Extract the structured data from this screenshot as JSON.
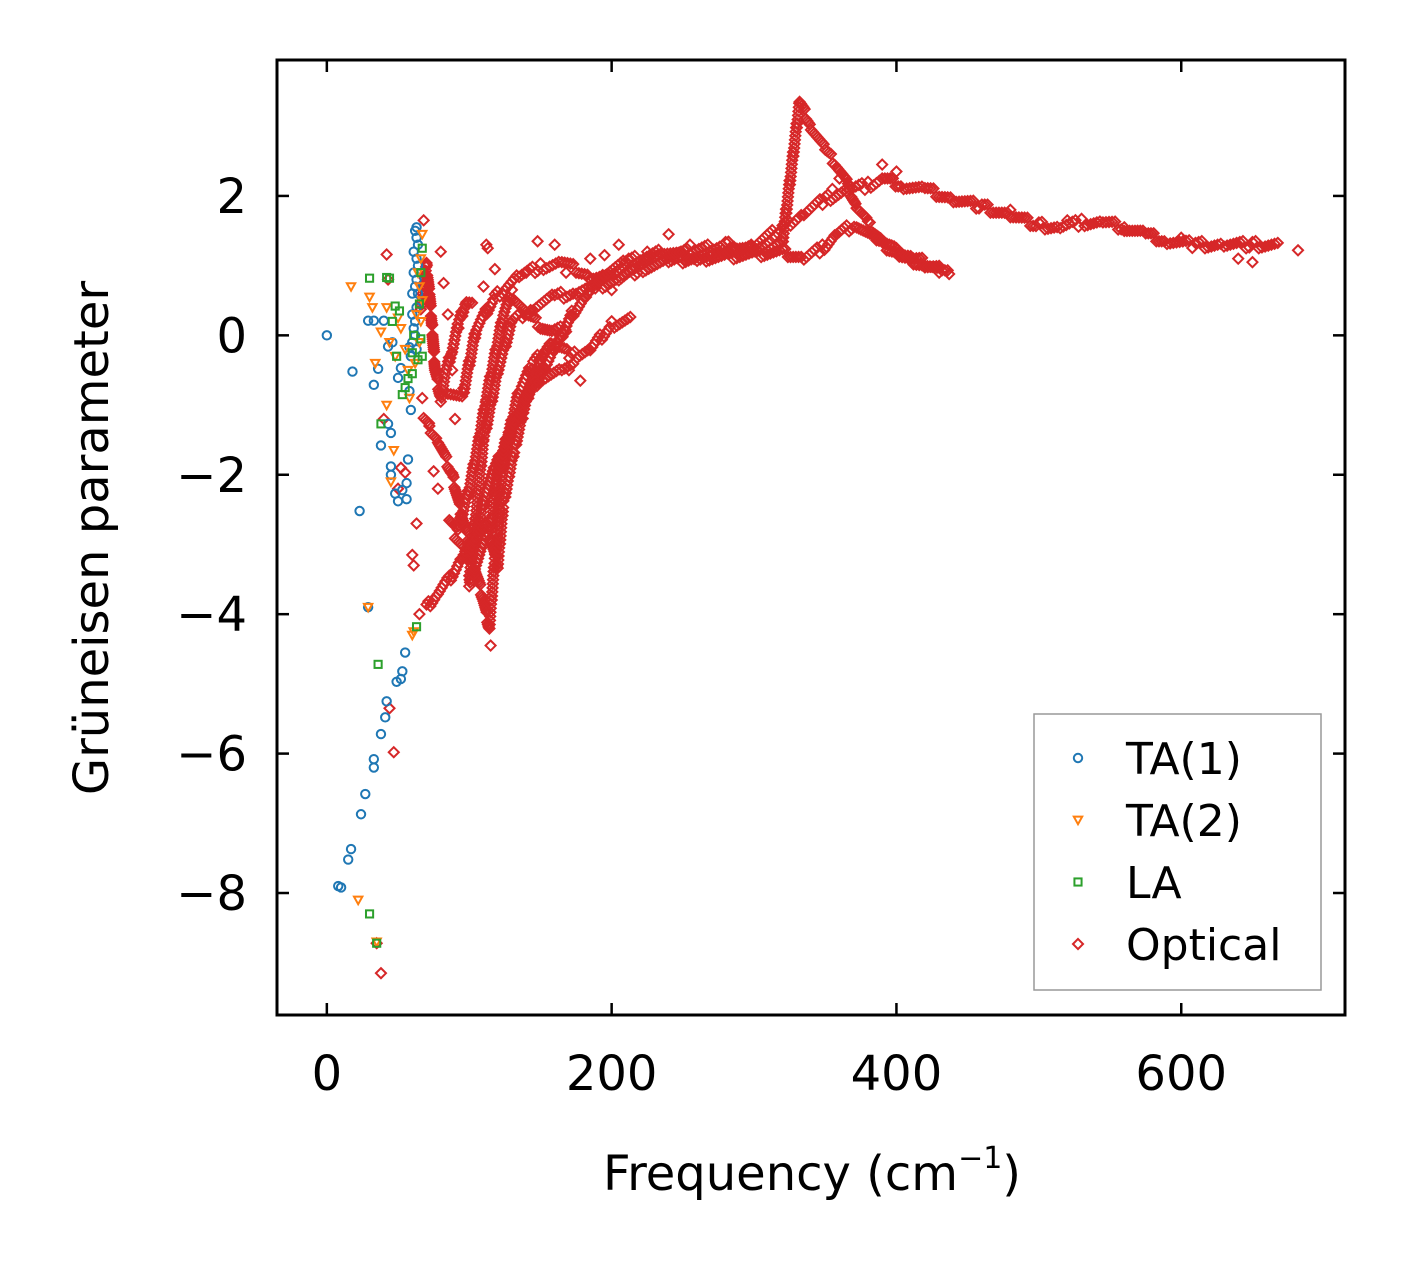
{
  "chart_data": {
    "type": "scatter",
    "title": "",
    "xlabel": "Frequency (cm",
    "xlabel_sup": "−1",
    "xlabel_close": ")",
    "ylabel": "Grüneisen parameter",
    "xlim": [
      -35,
      715
    ],
    "ylim": [
      -9.75,
      3.95
    ],
    "xticks": [
      0,
      200,
      400,
      600
    ],
    "xtick_labels": [
      "0",
      "200",
      "400",
      "600"
    ],
    "yticks": [
      2,
      0,
      -2,
      -4,
      -6,
      -8
    ],
    "ytick_labels": [
      "2",
      "0",
      "−2",
      "−4",
      "−6",
      "−8"
    ],
    "legend_position": "lower-right",
    "series": [
      {
        "name": "TA(1)",
        "marker": "circle",
        "color": "#1f77b4",
        "points": [
          [
            0,
            0
          ],
          [
            8,
            -7.9
          ],
          [
            10,
            -7.92
          ],
          [
            15,
            -7.52
          ],
          [
            17,
            -7.37
          ],
          [
            18,
            -0.52
          ],
          [
            23,
            -2.52
          ],
          [
            24,
            -6.87
          ],
          [
            27,
            -6.58
          ],
          [
            29,
            -3.9
          ],
          [
            29,
            0.21
          ],
          [
            33,
            -6.2
          ],
          [
            33,
            -6.08
          ],
          [
            33,
            0.21
          ],
          [
            33,
            -0.71
          ],
          [
            36,
            -0.48
          ],
          [
            38,
            -5.72
          ],
          [
            38,
            -1.58
          ],
          [
            40,
            0.21
          ],
          [
            41,
            -5.48
          ],
          [
            42,
            -5.25
          ],
          [
            43,
            -1.27
          ],
          [
            43,
            -0.16
          ],
          [
            45,
            -1.4
          ],
          [
            45,
            -1.88
          ],
          [
            45,
            -2.0
          ],
          [
            46,
            -0.1
          ],
          [
            48,
            -2.27
          ],
          [
            49,
            -4.97
          ],
          [
            50,
            -0.61
          ],
          [
            50,
            -2.38
          ],
          [
            52,
            -4.93
          ],
          [
            52,
            -0.47
          ],
          [
            53,
            -4.82
          ],
          [
            53,
            -2.22
          ],
          [
            55,
            -4.55
          ],
          [
            56,
            -2.35
          ],
          [
            56,
            -2.12
          ],
          [
            57,
            -1.78
          ],
          [
            58,
            -0.17
          ],
          [
            59,
            -1.07
          ],
          [
            58,
            -0.8
          ],
          [
            59,
            -0.3
          ],
          [
            60,
            0.3
          ],
          [
            60,
            0.6
          ],
          [
            61,
            0.9
          ],
          [
            61,
            1.2
          ],
          [
            62,
            1.5
          ],
          [
            62,
            0.0
          ],
          [
            63,
            0.4
          ],
          [
            63,
            0.8
          ],
          [
            63,
            1.1
          ],
          [
            63,
            1.4
          ],
          [
            62,
            0.2
          ],
          [
            64,
            0.6
          ],
          [
            64,
            1.0
          ],
          [
            64,
            1.3
          ],
          [
            63,
            -0.2
          ],
          [
            61,
            0.1
          ],
          [
            62,
            0.7
          ],
          [
            63,
            1.55
          ],
          [
            60,
            -0.1
          ]
        ]
      },
      {
        "name": "TA(2)",
        "marker": "triangle-down",
        "color": "#ff7f0e",
        "points": [
          [
            17,
            0.7
          ],
          [
            22,
            -8.1
          ],
          [
            29,
            -3.9
          ],
          [
            30,
            0.55
          ],
          [
            32,
            0.4
          ],
          [
            34,
            -0.4
          ],
          [
            35,
            -8.7
          ],
          [
            38,
            0.05
          ],
          [
            42,
            -1.0
          ],
          [
            42,
            0.4
          ],
          [
            44,
            -0.1
          ],
          [
            45,
            -2.1
          ],
          [
            47,
            -1.65
          ],
          [
            48,
            -0.3
          ],
          [
            50,
            0.25
          ],
          [
            52,
            0.1
          ],
          [
            55,
            -0.2
          ],
          [
            57,
            -0.5
          ],
          [
            58,
            -0.9
          ],
          [
            60,
            -4.3
          ],
          [
            61,
            -4.25
          ],
          [
            62,
            -0.4
          ],
          [
            63,
            0.3
          ],
          [
            65,
            0.7
          ],
          [
            66,
            1.1
          ],
          [
            67,
            1.45
          ],
          [
            66,
            0.2
          ],
          [
            65,
            -0.1
          ],
          [
            64,
            0.9
          ],
          [
            67,
            0.5
          ]
        ]
      },
      {
        "name": "LA",
        "marker": "square",
        "color": "#2ca02c",
        "points": [
          [
            30,
            0.82
          ],
          [
            30,
            -8.3
          ],
          [
            35,
            -8.72
          ],
          [
            36,
            -4.72
          ],
          [
            38,
            -1.27
          ],
          [
            42,
            0.83
          ],
          [
            44,
            0.82
          ],
          [
            46,
            0.2
          ],
          [
            48,
            0.42
          ],
          [
            49,
            -0.3
          ],
          [
            51,
            0.35
          ],
          [
            53,
            -0.85
          ],
          [
            55,
            -0.75
          ],
          [
            57,
            -0.62
          ],
          [
            60,
            -0.55
          ],
          [
            60,
            -0.25
          ],
          [
            61,
            0.0
          ],
          [
            63,
            -4.18
          ],
          [
            64,
            -0.35
          ],
          [
            66,
            -0.05
          ],
          [
            65,
            0.45
          ],
          [
            66,
            0.9
          ],
          [
            67,
            1.25
          ],
          [
            67,
            -0.3
          ]
        ]
      },
      {
        "name": "Optical",
        "marker": "diamond",
        "color": "#d62728",
        "points": []
      }
    ],
    "optical_scatter_points": [
      [
        35,
        -8.72
      ],
      [
        38,
        -9.15
      ],
      [
        40,
        -1.2
      ],
      [
        42,
        1.16
      ],
      [
        43,
        0.8
      ],
      [
        44,
        -5.35
      ],
      [
        47,
        -5.98
      ],
      [
        50,
        -2.2
      ],
      [
        52,
        -1.9
      ],
      [
        55,
        -1.97
      ],
      [
        60,
        -3.15
      ],
      [
        61,
        -3.3
      ],
      [
        63,
        -2.7
      ],
      [
        65,
        -4.0
      ],
      [
        67,
        -0.9
      ],
      [
        68,
        1.65
      ],
      [
        72,
        -1.3
      ],
      [
        75,
        -1.95
      ],
      [
        78,
        -2.2
      ],
      [
        80,
        1.2
      ],
      [
        82,
        0.75
      ],
      [
        85,
        0.3
      ],
      [
        88,
        -0.5
      ],
      [
        90,
        -1.2
      ],
      [
        110,
        0.7
      ],
      [
        112,
        1.3
      ],
      [
        113,
        1.25
      ],
      [
        118,
        0.95
      ],
      [
        115,
        -4.45
      ],
      [
        140,
        0.9
      ],
      [
        148,
        1.35
      ],
      [
        160,
        1.3
      ],
      [
        168,
        0.9
      ],
      [
        170,
        -0.5
      ],
      [
        178,
        -0.65
      ],
      [
        185,
        1.1
      ],
      [
        195,
        1.15
      ],
      [
        200,
        0.65
      ],
      [
        205,
        1.3
      ],
      [
        212,
        1.1
      ],
      [
        225,
        1.2
      ],
      [
        240,
        1.45
      ],
      [
        255,
        1.3
      ],
      [
        270,
        1.15
      ],
      [
        300,
        1.25
      ],
      [
        320,
        1.35
      ],
      [
        355,
        2.1
      ],
      [
        360,
        2.25
      ],
      [
        390,
        2.45
      ],
      [
        400,
        2.35
      ],
      [
        430,
        0.9
      ],
      [
        437,
        0.88
      ],
      [
        480,
        1.8
      ],
      [
        520,
        1.65
      ],
      [
        560,
        1.55
      ],
      [
        600,
        1.4
      ],
      [
        640,
        1.1
      ],
      [
        650,
        1.05
      ],
      [
        682,
        1.22
      ]
    ],
    "optical_bands": [
      [
        [
          100,
          -3.5
        ],
        [
          110,
          -1.5
        ],
        [
          120,
          -0.5
        ],
        [
          130,
          0.2
        ],
        [
          145,
          0.4
        ],
        [
          160,
          0.55
        ],
        [
          175,
          0.62
        ],
        [
          190,
          0.7
        ],
        [
          205,
          0.8
        ],
        [
          220,
          0.95
        ],
        [
          240,
          1.05
        ],
        [
          260,
          1.12
        ],
        [
          280,
          1.18
        ],
        [
          300,
          1.3
        ],
        [
          320,
          1.55
        ],
        [
          335,
          1.75
        ],
        [
          350,
          1.95
        ],
        [
          365,
          2.08
        ],
        [
          380,
          2.15
        ],
        [
          390,
          2.25
        ],
        [
          405,
          2.15
        ],
        [
          420,
          2.1
        ],
        [
          440,
          1.95
        ],
        [
          460,
          1.85
        ],
        [
          480,
          1.72
        ],
        [
          500,
          1.58
        ],
        [
          515,
          1.55
        ],
        [
          530,
          1.62
        ],
        [
          545,
          1.62
        ],
        [
          560,
          1.55
        ],
        [
          575,
          1.45
        ],
        [
          590,
          1.35
        ],
        [
          610,
          1.3
        ],
        [
          630,
          1.3
        ],
        [
          650,
          1.3
        ],
        [
          670,
          1.3
        ]
      ],
      [
        [
          85,
          -0.8
        ],
        [
          95,
          -0.9
        ],
        [
          105,
          0.1
        ],
        [
          118,
          0.55
        ],
        [
          135,
          0.85
        ],
        [
          150,
          0.98
        ],
        [
          165,
          1.05
        ],
        [
          185,
          0.85
        ],
        [
          200,
          0.85
        ],
        [
          215,
          0.98
        ],
        [
          230,
          1.1
        ],
        [
          255,
          1.2
        ],
        [
          280,
          1.3
        ],
        [
          300,
          1.22
        ],
        [
          320,
          1.35
        ],
        [
          332,
          3.35
        ],
        [
          340,
          3.0
        ],
        [
          350,
          2.65
        ],
        [
          358,
          2.45
        ],
        [
          366,
          2.15
        ],
        [
          372,
          1.85
        ],
        [
          380,
          1.6
        ],
        [
          390,
          1.35
        ],
        [
          400,
          1.2
        ],
        [
          410,
          1.1
        ],
        [
          420,
          1.05
        ],
        [
          432,
          0.92
        ],
        [
          438,
          0.88
        ]
      ],
      [
        [
          90,
          -2.9
        ],
        [
          100,
          -3.2
        ],
        [
          108,
          -2.6
        ],
        [
          112,
          -2.2
        ],
        [
          118,
          -1.9
        ],
        [
          125,
          -1.6
        ],
        [
          132,
          -1.3
        ],
        [
          140,
          -0.9
        ],
        [
          150,
          -0.55
        ],
        [
          160,
          -0.2
        ],
        [
          172,
          0.3
        ],
        [
          182,
          0.55
        ],
        [
          195,
          0.9
        ],
        [
          210,
          1.05
        ],
        [
          235,
          1.2
        ],
        [
          260,
          1.1
        ],
        [
          290,
          1.15
        ],
        [
          320,
          1.2
        ],
        [
          335,
          1.1
        ],
        [
          348,
          1.25
        ],
        [
          358,
          1.45
        ],
        [
          372,
          1.6
        ],
        [
          386,
          1.35
        ],
        [
          395,
          1.25
        ],
        [
          406,
          1.12
        ],
        [
          420,
          1.0
        ],
        [
          432,
          0.95
        ]
      ],
      [
        [
          68,
          -1.2
        ],
        [
          78,
          -1.5
        ],
        [
          88,
          -2.0
        ],
        [
          95,
          -2.6
        ],
        [
          102,
          -3.2
        ],
        [
          110,
          -3.8
        ],
        [
          114,
          -4.2
        ],
        [
          118,
          -3.2
        ],
        [
          122,
          -2.2
        ],
        [
          128,
          -1.4
        ],
        [
          135,
          -0.8
        ],
        [
          145,
          -0.4
        ],
        [
          158,
          -0.1
        ],
        [
          172,
          -0.3
        ],
        [
          185,
          -0.2
        ],
        [
          200,
          0.15
        ],
        [
          215,
          0.25
        ]
      ],
      [
        [
          70,
          -3.9
        ],
        [
          78,
          -3.7
        ],
        [
          86,
          -3.5
        ],
        [
          95,
          -3.2
        ],
        [
          104,
          -2.9
        ],
        [
          112,
          -2.7
        ],
        [
          120,
          -3.3
        ],
        [
          124,
          -2.4
        ],
        [
          128,
          -2.0
        ],
        [
          132,
          -1.6
        ],
        [
          138,
          -1.1
        ],
        [
          145,
          -0.6
        ],
        [
          152,
          -0.3
        ],
        [
          160,
          -0.1
        ]
      ],
      [
        [
          86,
          -2.6
        ],
        [
          92,
          -2.8
        ],
        [
          100,
          -2.2
        ],
        [
          106,
          -1.6
        ],
        [
          112,
          -0.9
        ],
        [
          118,
          -0.3
        ],
        [
          124,
          0.3
        ],
        [
          130,
          0.6
        ],
        [
          140,
          0.3
        ],
        [
          150,
          0.15
        ],
        [
          158,
          0.05
        ],
        [
          170,
          0.1
        ]
      ],
      [
        [
          66,
          0.4
        ],
        [
          70,
          1.0
        ],
        [
          72,
          0.6
        ],
        [
          74,
          0.1
        ],
        [
          76,
          -0.5
        ],
        [
          80,
          -0.9
        ],
        [
          84,
          -0.5
        ],
        [
          88,
          -0.2
        ],
        [
          93,
          0.2
        ],
        [
          98,
          0.5
        ],
        [
          104,
          0.45
        ]
      ],
      [
        [
          100,
          -3.6
        ],
        [
          104,
          -3.3
        ],
        [
          110,
          -3.0
        ],
        [
          116,
          -2.6
        ],
        [
          120,
          -2.0
        ],
        [
          126,
          -1.5
        ],
        [
          133,
          -1.2
        ],
        [
          140,
          -0.9
        ],
        [
          150,
          -0.6
        ],
        [
          165,
          -0.5
        ],
        [
          175,
          -0.45
        ]
      ]
    ]
  }
}
